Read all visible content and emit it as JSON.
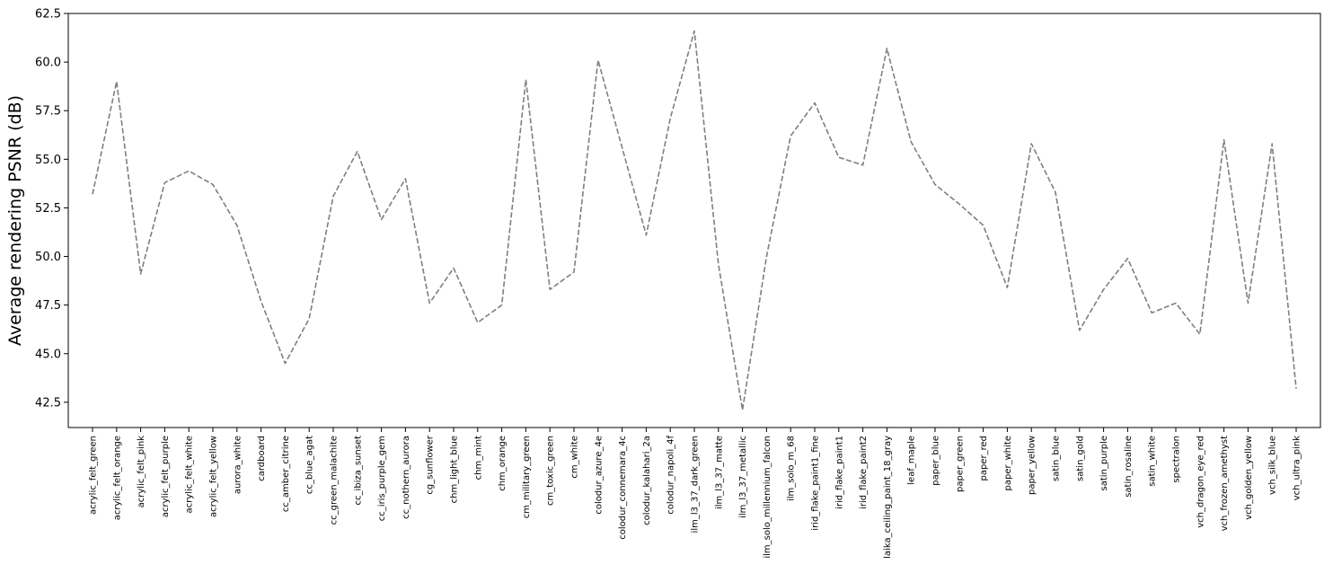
{
  "chart_data": {
    "type": "line",
    "title": "",
    "xlabel": "",
    "ylabel": "Average rendering PSNR (dB)",
    "ylim": [
      41.2,
      62.5
    ],
    "y_ticks": [
      42.5,
      45.0,
      47.5,
      50.0,
      52.5,
      55.0,
      57.5,
      60.0,
      62.5
    ],
    "y_tick_labels": [
      "42.5",
      "45.0",
      "47.5",
      "50.0",
      "52.5",
      "55.0",
      "57.5",
      "60.0",
      "62.5"
    ],
    "grid": false,
    "legend": "none",
    "line_style": "dashed",
    "line_color": "#7f7f7f",
    "categories": [
      "acrylic_felt_green",
      "acrylic_felt_orange",
      "acrylic_felt_pink",
      "acrylic_felt_purple",
      "acrylic_felt_white",
      "acrylic_felt_yellow",
      "aurora_white",
      "cardboard",
      "cc_amber_citrine",
      "cc_blue_agat",
      "cc_green_malachite",
      "cc_ibiza_sunset",
      "cc_iris_purple_gem",
      "cc_nothern_aurora",
      "cg_sunflower",
      "chm_light_blue",
      "chm_mint",
      "chm_orange",
      "cm_military_green",
      "cm_toxic_green",
      "cm_white",
      "colodur_azure_4e",
      "colodur_connemara_4c",
      "colodur_kalahari_2a",
      "colodur_napoli_4f",
      "ilm_l3_37_dark_green",
      "ilm_l3_37_matte",
      "ilm_l3_37_metallic",
      "ilm_solo_millennium_falcon",
      "ilm_solo_m_68",
      "irid_flake_paint1_fine",
      "irid_flake_paint1",
      "irid_flake_paint2",
      "laika_ceiling_paint_18_gray",
      "leaf_maple",
      "paper_blue",
      "paper_green",
      "paper_red",
      "paper_white",
      "paper_yellow",
      "satin_blue",
      "satin_gold",
      "satin_purple",
      "satin_rosaline",
      "satin_white",
      "spectralon",
      "vch_dragon_eye_red",
      "vch_frozen_amethyst",
      "vch_golden_yellow",
      "vch_silk_blue",
      "vch_ultra_pink"
    ],
    "values": [
      53.2,
      59.0,
      49.1,
      53.8,
      54.4,
      53.7,
      51.6,
      47.7,
      44.5,
      46.8,
      53.1,
      55.4,
      51.9,
      54.0,
      47.6,
      49.4,
      46.6,
      47.5,
      59.1,
      48.3,
      49.2,
      60.1,
      55.6,
      51.1,
      57.1,
      61.6,
      49.6,
      42.1,
      50.0,
      56.2,
      57.9,
      55.1,
      54.7,
      60.7,
      55.9,
      53.7,
      52.7,
      51.6,
      48.4,
      55.8,
      53.3,
      46.2,
      48.3,
      49.9,
      47.1,
      47.6,
      46.0,
      56.0,
      47.6,
      55.8,
      43.2
    ]
  }
}
